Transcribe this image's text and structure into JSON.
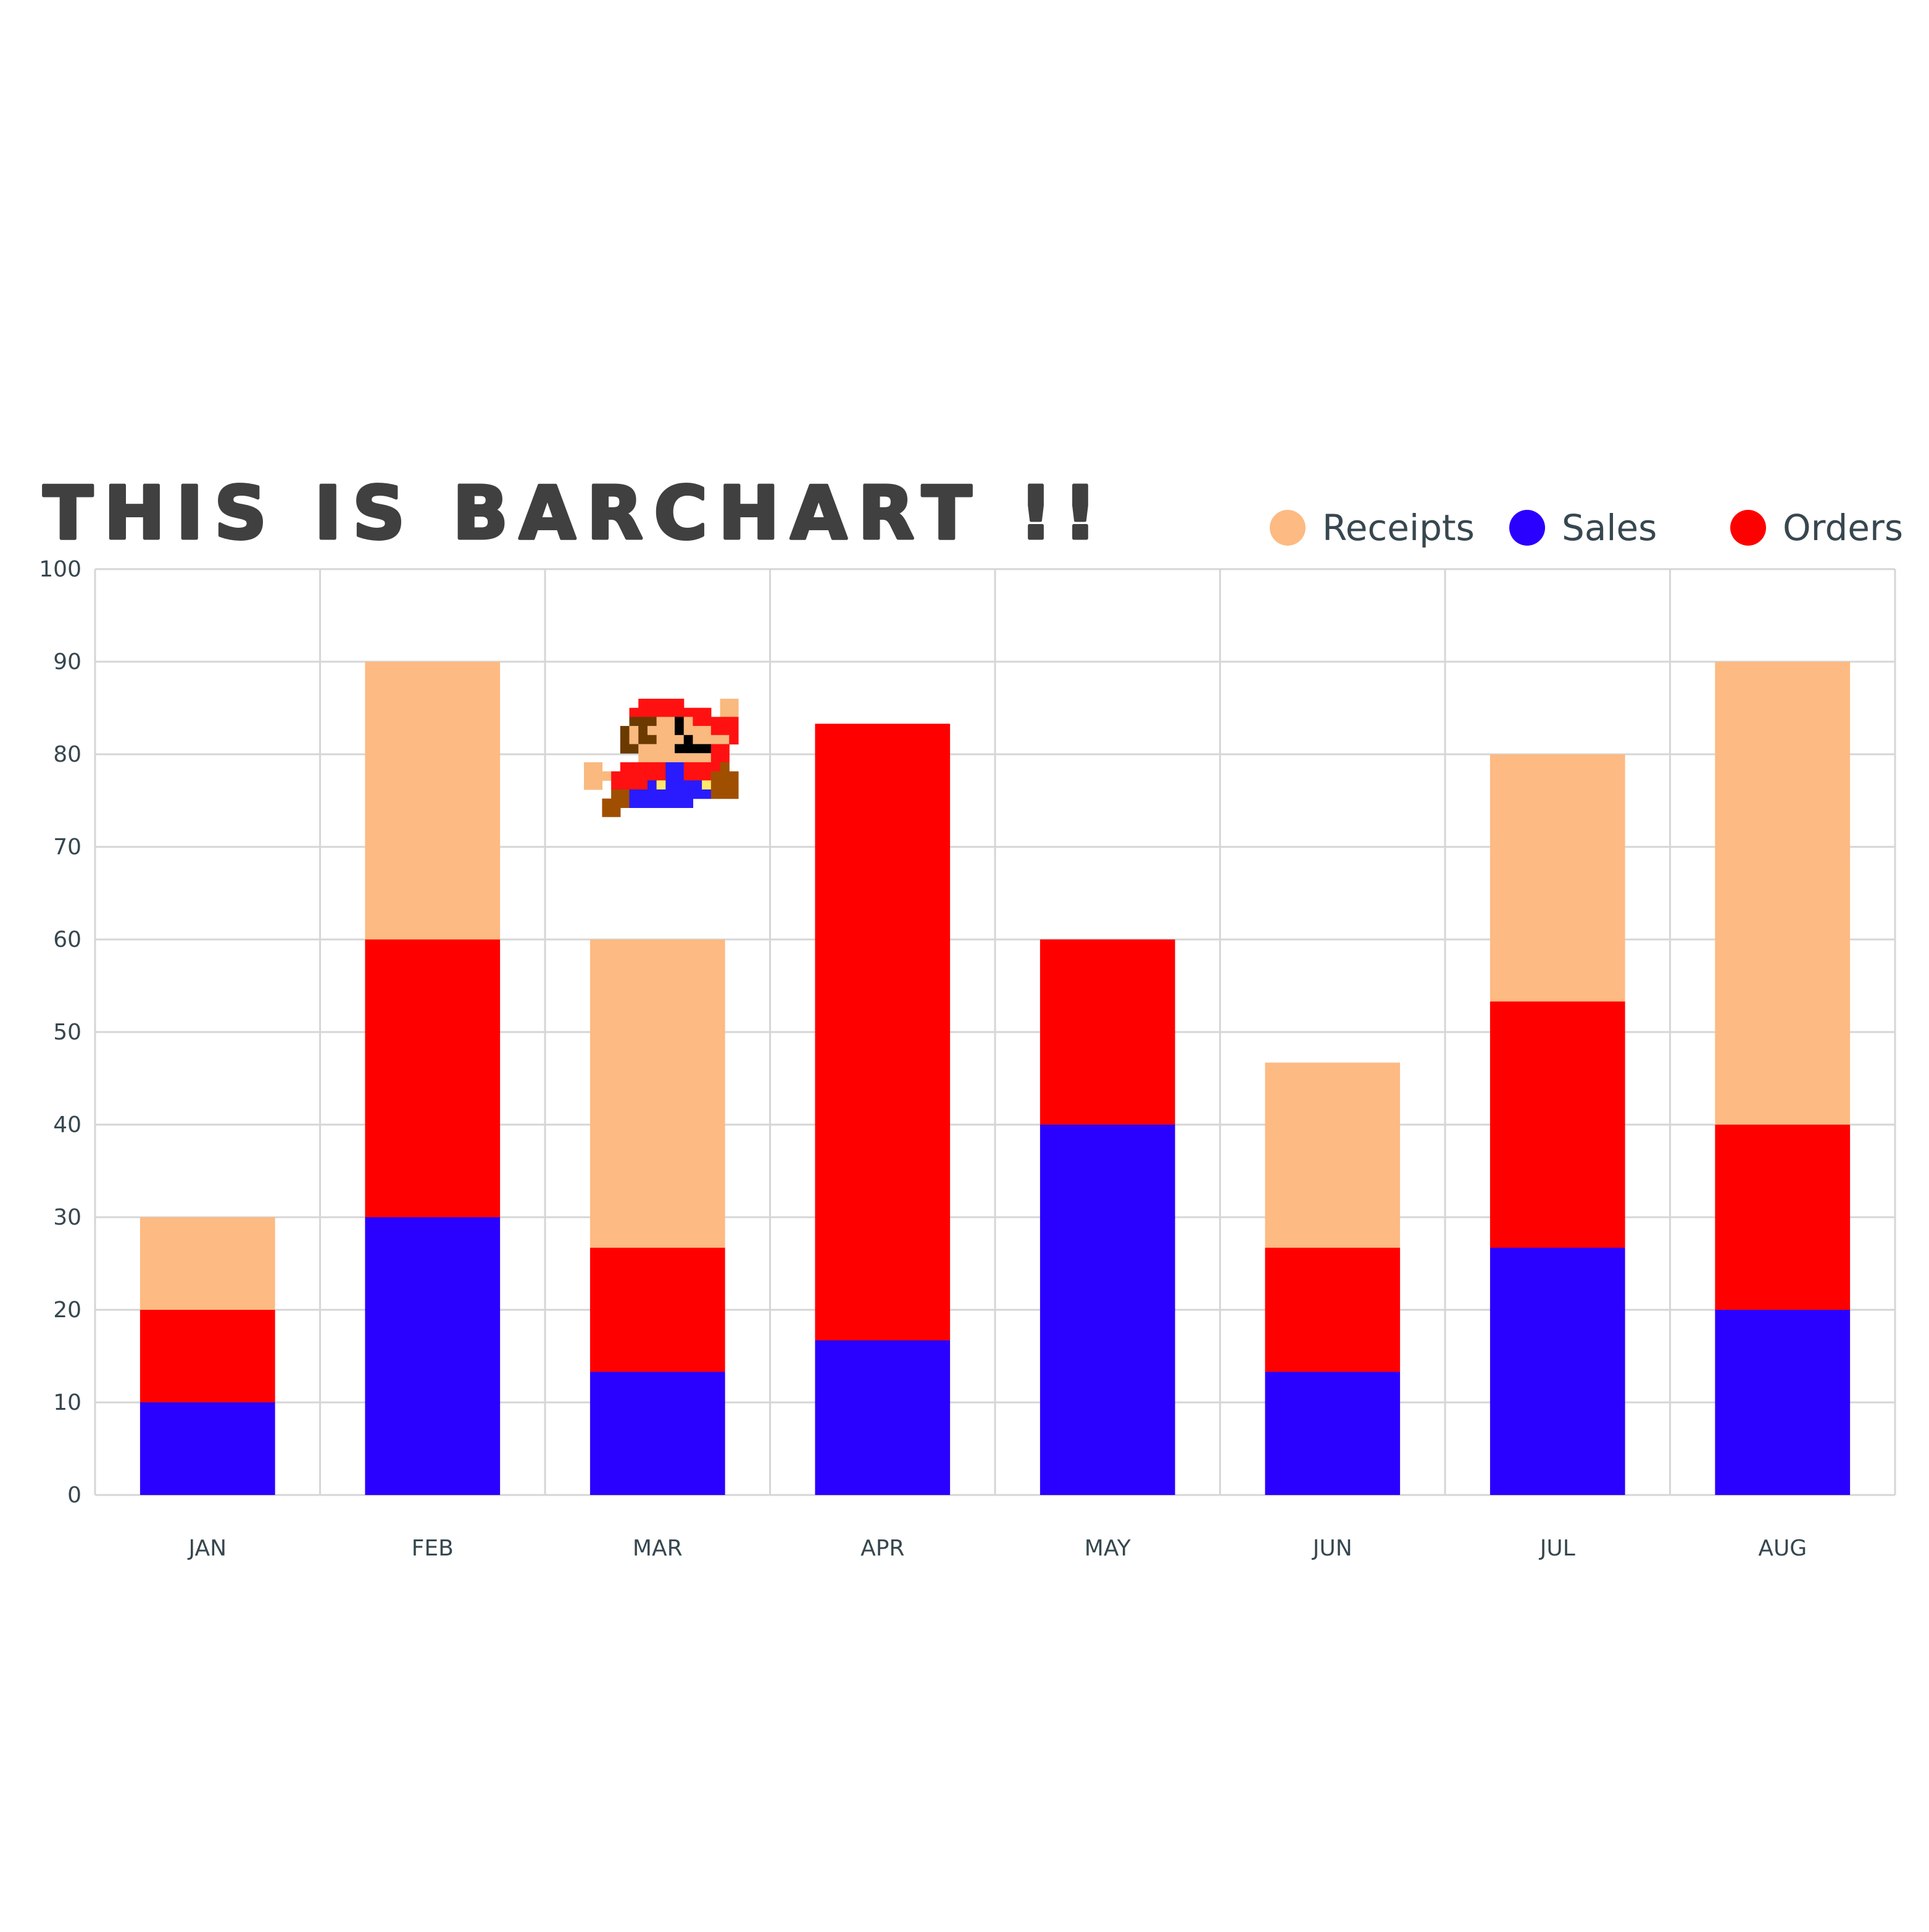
{
  "chart_data": {
    "type": "bar",
    "stacked": true,
    "title": "THIS IS BARCHART !!",
    "categories": [
      "JAN",
      "FEB",
      "MAR",
      "APR",
      "MAY",
      "JUN",
      "JUL",
      "AUG"
    ],
    "series": [
      {
        "name": "Sales",
        "color": "#2a00ff",
        "values": [
          10,
          30,
          13.3,
          16.7,
          40,
          13.3,
          26.7,
          20
        ]
      },
      {
        "name": "Orders",
        "color": "#ff0000",
        "values": [
          10,
          30,
          13.4,
          66.6,
          20,
          13.4,
          26.6,
          20
        ]
      },
      {
        "name": "Receipts",
        "color": "#fdba82",
        "values": [
          10,
          30,
          33.3,
          0,
          0,
          20,
          26.7,
          50
        ]
      }
    ],
    "legend": {
      "position": "top-right",
      "order": [
        "Receipts",
        "Sales",
        "Orders"
      ]
    },
    "ylim": [
      0,
      100
    ],
    "yticks": [
      "0",
      "10",
      "20",
      "30",
      "40",
      "50",
      "60",
      "70",
      "80",
      "90",
      "100"
    ],
    "grid": true,
    "xlabel": "",
    "ylabel": ""
  },
  "decoration": {
    "sprite": "mario-sprite"
  }
}
